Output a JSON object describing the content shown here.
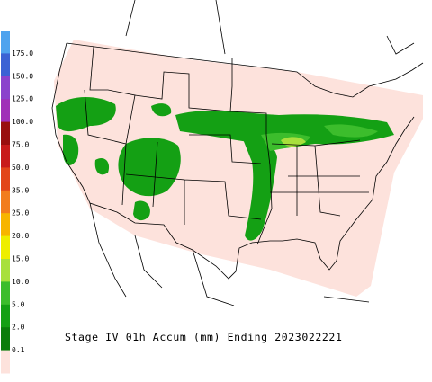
{
  "legend": {
    "labels": [
      "175.0",
      "150.0",
      "125.0",
      "100.0",
      "75.0",
      "50.0",
      "35.0",
      "25.0",
      "20.0",
      "15.0",
      "10.0",
      "5.0",
      "2.0",
      "0.1"
    ],
    "colors": [
      "#4fa3ee",
      "#3b62d4",
      "#8b43cc",
      "#a030b8",
      "#990f0f",
      "#c81b1b",
      "#e2461a",
      "#f27d1e",
      "#f7b500",
      "#eeee00",
      "#a8e03c",
      "#3cbd2c",
      "#14a014",
      "#0b7d0b",
      "#fde2dc"
    ]
  },
  "caption": "Stage IV 01h Accum (mm) Ending 2023022221"
}
